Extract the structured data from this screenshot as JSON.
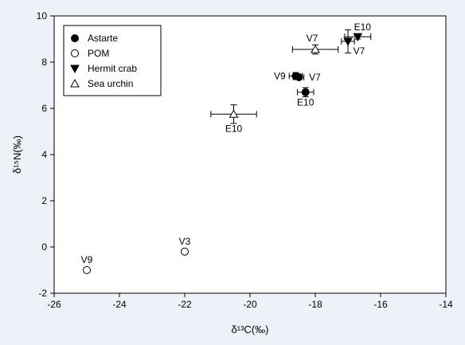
{
  "chart_data": {
    "type": "scatter",
    "xlabel": "δ¹³C(‰)",
    "ylabel": "δ¹⁵N(‰)",
    "xlim": [
      -26,
      -14
    ],
    "ylim": [
      -2,
      10
    ],
    "x_ticks": [
      -26,
      -24,
      -22,
      -20,
      -18,
      -16,
      -14
    ],
    "y_ticks": [
      -2,
      0,
      2,
      4,
      6,
      8,
      10
    ],
    "grid": false,
    "legend_position": "top-left",
    "series": [
      {
        "name": "Astarte",
        "marker": "circle-filled",
        "points": [
          {
            "x": -18.6,
            "y": 7.4,
            "x_err": 0.2,
            "y_err": 0.15,
            "label": "V9"
          },
          {
            "x": -18.5,
            "y": 7.35,
            "x_err": 0.15,
            "y_err": 0.1,
            "label": "V7"
          },
          {
            "x": -18.3,
            "y": 6.7,
            "x_err": 0.25,
            "y_err": 0.2,
            "label": "E10"
          }
        ]
      },
      {
        "name": "POM",
        "marker": "circle-open",
        "points": [
          {
            "x": -25.0,
            "y": -1.0,
            "label": "V9"
          },
          {
            "x": -22.0,
            "y": -0.2,
            "label": "V3"
          }
        ]
      },
      {
        "name": "Hermit crab",
        "marker": "triangle-down-filled",
        "points": [
          {
            "x": -16.7,
            "y": 9.1,
            "x_err": 0.4,
            "y_err": 0.1,
            "label": "E10"
          },
          {
            "x": -17.0,
            "y": 8.9,
            "x_err": 0.2,
            "y_err": 0.5,
            "label": "V7"
          }
        ]
      },
      {
        "name": "Sea urchin",
        "marker": "triangle-up-open",
        "points": [
          {
            "x": -18.0,
            "y": 8.55,
            "x_err": 0.7,
            "y_err": 0.2,
            "label": "V7"
          },
          {
            "x": -20.5,
            "y": 5.75,
            "x_err": 0.7,
            "y_err": 0.4,
            "label": "E10"
          }
        ]
      }
    ]
  }
}
